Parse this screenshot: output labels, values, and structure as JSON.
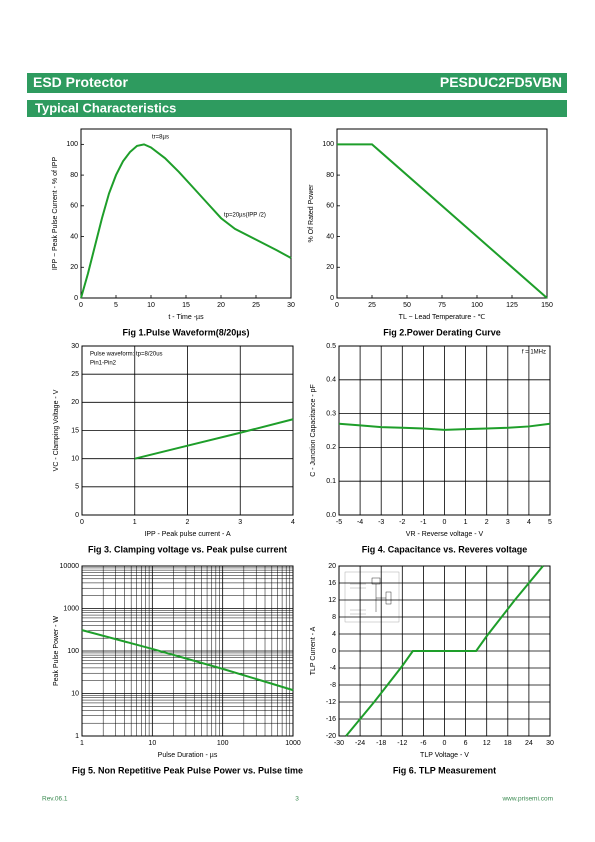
{
  "header": {
    "product_line": "ESD Protector",
    "part_number": "PESDUC2FD5VBN",
    "section": "Typical Characteristics"
  },
  "chart_data": [
    {
      "type": "line",
      "title": "Fig 1.Pulse Waveform(8/20µs)",
      "xlabel": "t - Time -µs",
      "ylabel": "IPP − Peak Pulse Current - % of IPP",
      "x": [
        0,
        1,
        2,
        3,
        4,
        5,
        6,
        7,
        8,
        9,
        10,
        12,
        14,
        16,
        18,
        20,
        22,
        25,
        28,
        30
      ],
      "series": [
        {
          "name": "Pulse",
          "color": "#1e9e2a",
          "values": [
            0,
            16,
            34,
            52,
            68,
            80,
            89,
            95,
            99,
            100,
            98,
            91,
            82,
            72,
            62,
            52,
            45,
            38,
            31,
            26
          ]
        }
      ],
      "xlim": [
        0,
        30
      ],
      "ylim": [
        0,
        110
      ],
      "xticks": [
        0,
        5,
        10,
        15,
        20,
        25,
        30
      ],
      "yticks": [
        0,
        20,
        40,
        60,
        80,
        100
      ],
      "grid": false,
      "log": false,
      "annotations": [
        "tr=8µs",
        "tp=20µs(IPP /2)"
      ]
    },
    {
      "type": "line",
      "title": "Fig 2.Power Derating Curve",
      "xlabel": "TL − Lead Temperature - ℃",
      "ylabel": "% Of Rated Power",
      "x": [
        0,
        25,
        150
      ],
      "series": [
        {
          "name": "Derating",
          "color": "#1e9e2a",
          "values": [
            100,
            100,
            0
          ]
        }
      ],
      "xlim": [
        0,
        150
      ],
      "ylim": [
        0,
        110
      ],
      "xticks": [
        0,
        25,
        50,
        75,
        100,
        125,
        150
      ],
      "yticks": [
        0,
        20,
        40,
        60,
        80,
        100
      ],
      "grid": false,
      "log": false,
      "annotations": []
    },
    {
      "type": "line",
      "title": "Fig 3. Clamping voltage vs. Peak pulse current",
      "xlabel": "IPP - Peak pulse current - A",
      "ylabel": "VC - Clamping Voltage - V",
      "x": [
        1,
        2,
        3,
        4
      ],
      "series": [
        {
          "name": "Clamping",
          "color": "#1e9e2a",
          "values": [
            10,
            12.3,
            14.6,
            17
          ]
        }
      ],
      "xlim": [
        0,
        4
      ],
      "ylim": [
        0,
        30
      ],
      "xticks": [
        0,
        1,
        2,
        3,
        4
      ],
      "yticks": [
        0,
        5,
        10,
        15,
        20,
        25,
        30
      ],
      "grid": true,
      "log": false,
      "annotations": [
        "Pulse waveform: tp=8/20us",
        "Pin1-Pin2"
      ]
    },
    {
      "type": "line",
      "title": "Fig 4. Capacitance vs. Reveres voltage",
      "xlabel": "VR - Reverse voltage - V",
      "ylabel": "C - Junction Capacitance - pF",
      "x": [
        -5,
        -4,
        -3,
        -2,
        -1,
        0,
        1,
        2,
        3,
        4,
        5
      ],
      "series": [
        {
          "name": "Capacitance",
          "color": "#1e9e2a",
          "values": [
            0.27,
            0.265,
            0.26,
            0.258,
            0.256,
            0.252,
            0.254,
            0.256,
            0.258,
            0.262,
            0.27
          ]
        }
      ],
      "xlim": [
        -5,
        5
      ],
      "ylim": [
        0,
        0.5
      ],
      "xticks": [
        -5,
        -4,
        -3,
        -2,
        -1,
        0,
        1,
        2,
        3,
        4,
        5
      ],
      "yticks": [
        {
          "value": 0,
          "label": "0.0"
        },
        0.1,
        0.2,
        0.3,
        0.4,
        0.5
      ],
      "grid": true,
      "log": false,
      "annotations": [
        "f = 1MHz"
      ]
    },
    {
      "type": "line",
      "title": "Fig 5. Non Repetitive Peak Pulse Power vs. Pulse time",
      "xlabel": "Pulse Duration - µs",
      "ylabel": "Peak Pulse Power - W",
      "x": [
        1,
        10,
        100,
        1000
      ],
      "series": [
        {
          "name": "Power",
          "color": "#1e9e2a",
          "values": [
            310,
            112,
            38,
            12
          ]
        }
      ],
      "xlim": [
        1,
        1000
      ],
      "ylim": [
        1,
        10000
      ],
      "xticks": [
        1,
        10,
        100,
        1000
      ],
      "yticks": [
        1,
        10,
        100,
        1000,
        10000
      ],
      "grid": true,
      "log": true,
      "annotations": []
    },
    {
      "type": "line",
      "title": "Fig 6. TLP Measurement",
      "xlabel": "TLP Voltage - V",
      "ylabel": "TLP Current - A",
      "x": [
        -28,
        -20,
        -12,
        -9,
        9,
        12,
        20,
        28
      ],
      "series": [
        {
          "name": "TLP",
          "color": "#1e9e2a",
          "values": [
            -20,
            -12,
            -3.5,
            0,
            0,
            3.5,
            12,
            20
          ]
        }
      ],
      "xlim": [
        -30,
        30
      ],
      "ylim": [
        -20,
        20
      ],
      "xticks": [
        -30,
        -24,
        -18,
        -12,
        -6,
        0,
        6,
        12,
        18,
        24,
        30
      ],
      "yticks": [
        -20,
        -16,
        -12,
        -8,
        -4,
        0,
        4,
        8,
        12,
        16,
        20
      ],
      "grid": true,
      "log": false,
      "annotations": []
    }
  ],
  "footer": {
    "revision": "Rev.06.1",
    "page": "3",
    "website": "www.prisemi.com"
  }
}
